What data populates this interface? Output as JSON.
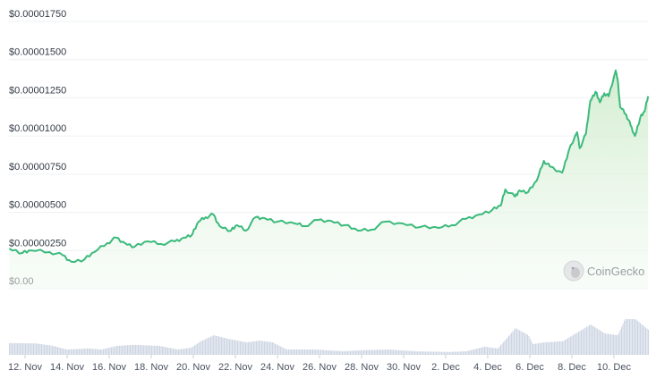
{
  "chart_data": {
    "type": "area",
    "title": "",
    "xlabel": "",
    "ylabel": "",
    "ylim": [
      0,
      1.75e-05
    ],
    "grid": true,
    "legend": "none",
    "colors": {
      "line": "#3cba7c",
      "fill": "#d9f0d9",
      "volume": "#cdd5e3",
      "grid": "#eef0f4"
    },
    "y_ticks": [
      {
        "value": 0,
        "label": "$0.00"
      },
      {
        "value": 2.5e-06,
        "label": "$0.00000250"
      },
      {
        "value": 5e-06,
        "label": "$0.00000500"
      },
      {
        "value": 7.5e-06,
        "label": "$0.00000750"
      },
      {
        "value": 1e-05,
        "label": "$0.00001000"
      },
      {
        "value": 1.25e-05,
        "label": "$0.00001250"
      },
      {
        "value": 1.5e-05,
        "label": "$0.00001500"
      },
      {
        "value": 1.75e-05,
        "label": "$0.00001750"
      }
    ],
    "x_ticks": [
      {
        "date": "11-12 00:00",
        "label": "12. Nov"
      },
      {
        "date": "11-14 00:00",
        "label": "14. Nov"
      },
      {
        "date": "11-16 00:00",
        "label": "16. Nov"
      },
      {
        "date": "11-18 00:00",
        "label": "18. Nov"
      },
      {
        "date": "11-20 00:00",
        "label": "20. Nov"
      },
      {
        "date": "11-22 00:00",
        "label": "22. Nov"
      },
      {
        "date": "11-24 00:00",
        "label": "24. Nov"
      },
      {
        "date": "11-26 00:00",
        "label": "26. Nov"
      },
      {
        "date": "11-28 00:00",
        "label": "28. Nov"
      },
      {
        "date": "11-30 00:00",
        "label": "30. Nov"
      },
      {
        "date": "12-02 00:00",
        "label": "2. Dec"
      },
      {
        "date": "12-04 00:00",
        "label": "4. Dec"
      },
      {
        "date": "12-06 00:00",
        "label": "6. Dec"
      },
      {
        "date": "12-08 00:00",
        "label": "8. Dec"
      },
      {
        "date": "12-10 00:00",
        "label": "10. Dec"
      }
    ],
    "price": [
      [
        "11-11 06:00",
        2.63e-06
      ],
      [
        "11-11 21:00",
        2.34e-06
      ],
      [
        "11-12 07:00",
        2.5e-06
      ],
      [
        "11-13 04:00",
        2.4e-06
      ],
      [
        "11-13 19:00",
        2.2e-06
      ],
      [
        "11-14 05:00",
        1.76e-06
      ],
      [
        "11-14 20:00",
        1.93e-06
      ],
      [
        "11-15 07:00",
        2.4e-06
      ],
      [
        "11-15 22:00",
        2.99e-06
      ],
      [
        "11-16 08:00",
        3.34e-06
      ],
      [
        "11-16 18:00",
        2.99e-06
      ],
      [
        "11-17 05:00",
        2.75e-06
      ],
      [
        "11-17 20:00",
        3.1e-06
      ],
      [
        "11-18 11:00",
        2.93e-06
      ],
      [
        "11-19 03:00",
        3.1e-06
      ],
      [
        "11-19 13:00",
        3.34e-06
      ],
      [
        "11-19 23:00",
        3.57e-06
      ],
      [
        "11-20 06:00",
        4.39e-06
      ],
      [
        "11-20 14:00",
        4.68e-06
      ],
      [
        "11-20 23:00",
        4.86e-06
      ],
      [
        "11-21 06:00",
        4.1e-06
      ],
      [
        "11-21 19:00",
        3.8e-06
      ],
      [
        "11-22 02:00",
        4.16e-06
      ],
      [
        "11-22 12:00",
        3.8e-06
      ],
      [
        "11-22 23:00",
        4.68e-06
      ],
      [
        "11-23 09:00",
        4.63e-06
      ],
      [
        "11-24 00:00",
        4.39e-06
      ],
      [
        "11-24 20:00",
        4.27e-06
      ],
      [
        "11-25 07:00",
        4.1e-06
      ],
      [
        "11-25 22:00",
        4.5e-06
      ],
      [
        "11-26 13:00",
        4.45e-06
      ],
      [
        "11-27 05:00",
        4.16e-06
      ],
      [
        "11-27 20:00",
        3.8e-06
      ],
      [
        "11-28 11:00",
        3.86e-06
      ],
      [
        "11-29 03:00",
        4.39e-06
      ],
      [
        "11-29 23:00",
        4.27e-06
      ],
      [
        "11-30 19:00",
        4.04e-06
      ],
      [
        "12-01 16:00",
        3.98e-06
      ],
      [
        "12-02 07:00",
        4.16e-06
      ],
      [
        "12-02 23:00",
        4.57e-06
      ],
      [
        "12-03 14:00",
        4.86e-06
      ],
      [
        "12-04 05:00",
        5.15e-06
      ],
      [
        "12-04 15:00",
        5.45e-06
      ],
      [
        "12-04 20:00",
        6.5e-06
      ],
      [
        "12-05 07:00",
        6.03e-06
      ],
      [
        "12-05 12:00",
        6.44e-06
      ],
      [
        "12-05 22:00",
        6.32e-06
      ],
      [
        "12-06 08:00",
        7.08e-06
      ],
      [
        "12-06 16:00",
        8.37e-06
      ],
      [
        "12-06 23:00",
        8e-06
      ],
      [
        "12-07 13:00",
        7.6e-06
      ],
      [
        "12-07 20:00",
        8.96e-06
      ],
      [
        "12-08 06:00",
        1.025e-05
      ],
      [
        "12-08 09:00",
        9.2e-06
      ],
      [
        "12-08 16:00",
        1.013e-05
      ],
      [
        "12-08 21:00",
        1.23e-05
      ],
      [
        "12-09 03:00",
        1.29e-05
      ],
      [
        "12-09 08:00",
        1.22e-05
      ],
      [
        "12-09 13:00",
        1.28e-05
      ],
      [
        "12-09 18:00",
        1.26e-05
      ],
      [
        "12-10 02:00",
        1.43e-05
      ],
      [
        "12-10 04:00",
        1.38e-05
      ],
      [
        "12-10 07:00",
        1.19e-05
      ],
      [
        "12-10 14:00",
        1.14e-05
      ],
      [
        "12-10 19:00",
        1.07e-05
      ],
      [
        "12-11 00:00",
        1e-05
      ],
      [
        "12-11 06:00",
        1.12e-05
      ],
      [
        "12-11 11:00",
        1.16e-05
      ],
      [
        "12-11 15:00",
        1.26e-05
      ]
    ],
    "volume_relative": [
      [
        "11-11 06:00",
        0.33
      ],
      [
        "11-12 12:00",
        0.32
      ],
      [
        "11-13 08:00",
        0.25
      ],
      [
        "11-13 23:00",
        0.15
      ],
      [
        "11-15 00:00",
        0.18
      ],
      [
        "11-15 15:00",
        0.15
      ],
      [
        "11-16 08:00",
        0.25
      ],
      [
        "11-17 04:00",
        0.28
      ],
      [
        "11-18 09:00",
        0.25
      ],
      [
        "11-19 06:00",
        0.15
      ],
      [
        "11-19 21:00",
        0.2
      ],
      [
        "11-20 08:00",
        0.38
      ],
      [
        "11-20 23:00",
        0.55
      ],
      [
        "11-21 15:00",
        0.45
      ],
      [
        "11-22 12:00",
        0.35
      ],
      [
        "11-23 03:00",
        0.4
      ],
      [
        "11-23 18:00",
        0.35
      ],
      [
        "11-24 10:00",
        0.15
      ],
      [
        "11-25 18:00",
        0.15
      ],
      [
        "11-27 03:00",
        0.1
      ],
      [
        "11-27 23:00",
        0.13
      ],
      [
        "11-29 06:00",
        0.15
      ],
      [
        "11-30 13:00",
        0.1
      ],
      [
        "12-02 03:00",
        0.08
      ],
      [
        "12-02 23:00",
        0.1
      ],
      [
        "12-03 20:00",
        0.23
      ],
      [
        "12-04 11:00",
        0.18
      ],
      [
        "12-04 20:00",
        0.43
      ],
      [
        "12-05 07:00",
        0.75
      ],
      [
        "12-05 22:00",
        0.55
      ],
      [
        "12-06 03:00",
        0.3
      ],
      [
        "12-06 16:00",
        0.35
      ],
      [
        "12-07 13:00",
        0.38
      ],
      [
        "12-08 06:00",
        0.63
      ],
      [
        "12-08 21:00",
        0.85
      ],
      [
        "12-09 13:00",
        0.6
      ],
      [
        "12-10 04:00",
        0.55
      ],
      [
        "12-10 12:00",
        1.0
      ],
      [
        "12-11 00:00",
        1.0
      ],
      [
        "12-11 15:00",
        0.7
      ]
    ]
  },
  "watermark": {
    "text": "CoinGecko",
    "icon": "gecko-logo-icon"
  }
}
